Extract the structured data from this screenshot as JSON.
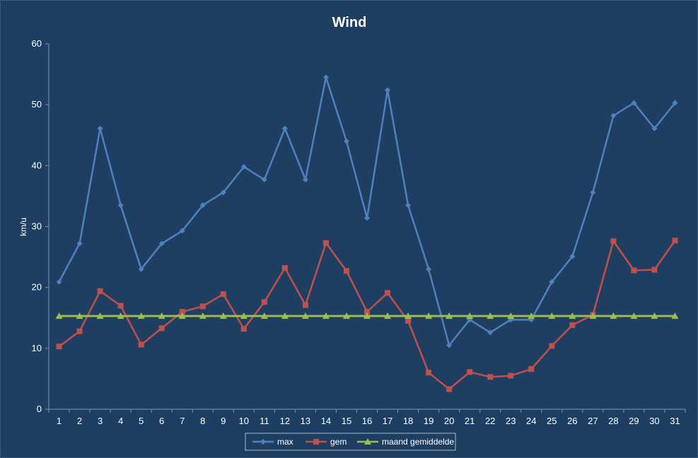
{
  "chart_data": {
    "type": "line",
    "title": "Wind",
    "xlabel": "",
    "ylabel": "km/u",
    "ylim": [
      0,
      60
    ],
    "yticks": [
      0,
      10,
      20,
      30,
      40,
      50,
      60
    ],
    "grid": false,
    "legend_position": "bottom",
    "x": [
      1,
      2,
      3,
      4,
      5,
      6,
      7,
      8,
      9,
      10,
      11,
      12,
      13,
      14,
      15,
      16,
      17,
      18,
      19,
      20,
      21,
      22,
      23,
      24,
      25,
      26,
      27,
      28,
      29,
      30,
      31
    ],
    "series": [
      {
        "name": "max",
        "color": "#4f81bd",
        "marker": "diamond",
        "values": [
          20.9,
          27.2,
          46.1,
          33.5,
          23.0,
          27.2,
          29.3,
          33.5,
          35.6,
          39.8,
          37.7,
          46.1,
          37.7,
          54.5,
          44.0,
          31.4,
          52.4,
          33.5,
          23.0,
          10.5,
          14.7,
          12.6,
          14.7,
          14.7,
          20.9,
          25.1,
          35.6,
          48.2,
          50.3,
          46.1,
          50.3
        ]
      },
      {
        "name": "gem",
        "color": "#c0504d",
        "marker": "square",
        "values": [
          10.3,
          12.8,
          19.4,
          17.0,
          10.6,
          13.3,
          16.0,
          16.9,
          18.9,
          13.2,
          17.6,
          23.2,
          17.1,
          27.3,
          22.7,
          16.0,
          19.1,
          14.5,
          6.0,
          3.3,
          6.1,
          5.3,
          5.5,
          6.6,
          10.4,
          13.8,
          15.5,
          27.6,
          22.8,
          22.9,
          27.7
        ]
      },
      {
        "name": "maand gemiddelde",
        "color": "#9bbb59",
        "marker": "triangle",
        "values": [
          15.3,
          15.3,
          15.3,
          15.3,
          15.3,
          15.3,
          15.3,
          15.3,
          15.3,
          15.3,
          15.3,
          15.3,
          15.3,
          15.3,
          15.3,
          15.3,
          15.3,
          15.3,
          15.3,
          15.3,
          15.3,
          15.3,
          15.3,
          15.3,
          15.3,
          15.3,
          15.3,
          15.3,
          15.3,
          15.3,
          15.3
        ]
      }
    ]
  },
  "colors": {
    "background": "#1f3f62",
    "text": "#ffffff",
    "axis": "#7f93a8"
  }
}
